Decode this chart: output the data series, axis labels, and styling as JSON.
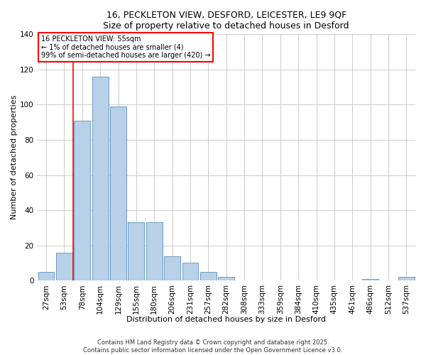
{
  "title": "16, PECKLETON VIEW, DESFORD, LEICESTER, LE9 9QF",
  "subtitle": "Size of property relative to detached houses in Desford",
  "xlabel": "Distribution of detached houses by size in Desford",
  "ylabel": "Number of detached properties",
  "bar_labels": [
    "27sqm",
    "53sqm",
    "78sqm",
    "104sqm",
    "129sqm",
    "155sqm",
    "180sqm",
    "206sqm",
    "231sqm",
    "257sqm",
    "282sqm",
    "308sqm",
    "333sqm",
    "359sqm",
    "384sqm",
    "410sqm",
    "435sqm",
    "461sqm",
    "486sqm",
    "512sqm",
    "537sqm"
  ],
  "bar_heights": [
    5,
    16,
    91,
    116,
    99,
    33,
    33,
    14,
    10,
    5,
    2,
    0,
    0,
    0,
    0,
    0,
    0,
    0,
    1,
    0,
    2
  ],
  "bar_color": "#b8d0e8",
  "bar_edgecolor": "#6a9ec0",
  "vline_color": "red",
  "vline_x_index": 1.5,
  "ylim": [
    0,
    140
  ],
  "yticks": [
    0,
    20,
    40,
    60,
    80,
    100,
    120,
    140
  ],
  "annotation_lines": [
    "16 PECKLETON VIEW: 55sqm",
    "← 1% of detached houses are smaller (4)",
    "99% of semi-detached houses are larger (420) →"
  ],
  "annotation_box_color": "white",
  "annotation_box_edgecolor": "red",
  "footer_lines": [
    "Contains HM Land Registry data © Crown copyright and database right 2025.",
    "Contains public sector information licensed under the Open Government Licence v3.0."
  ],
  "bg_color": "#ffffff",
  "plot_bg_color": "#ffffff"
}
